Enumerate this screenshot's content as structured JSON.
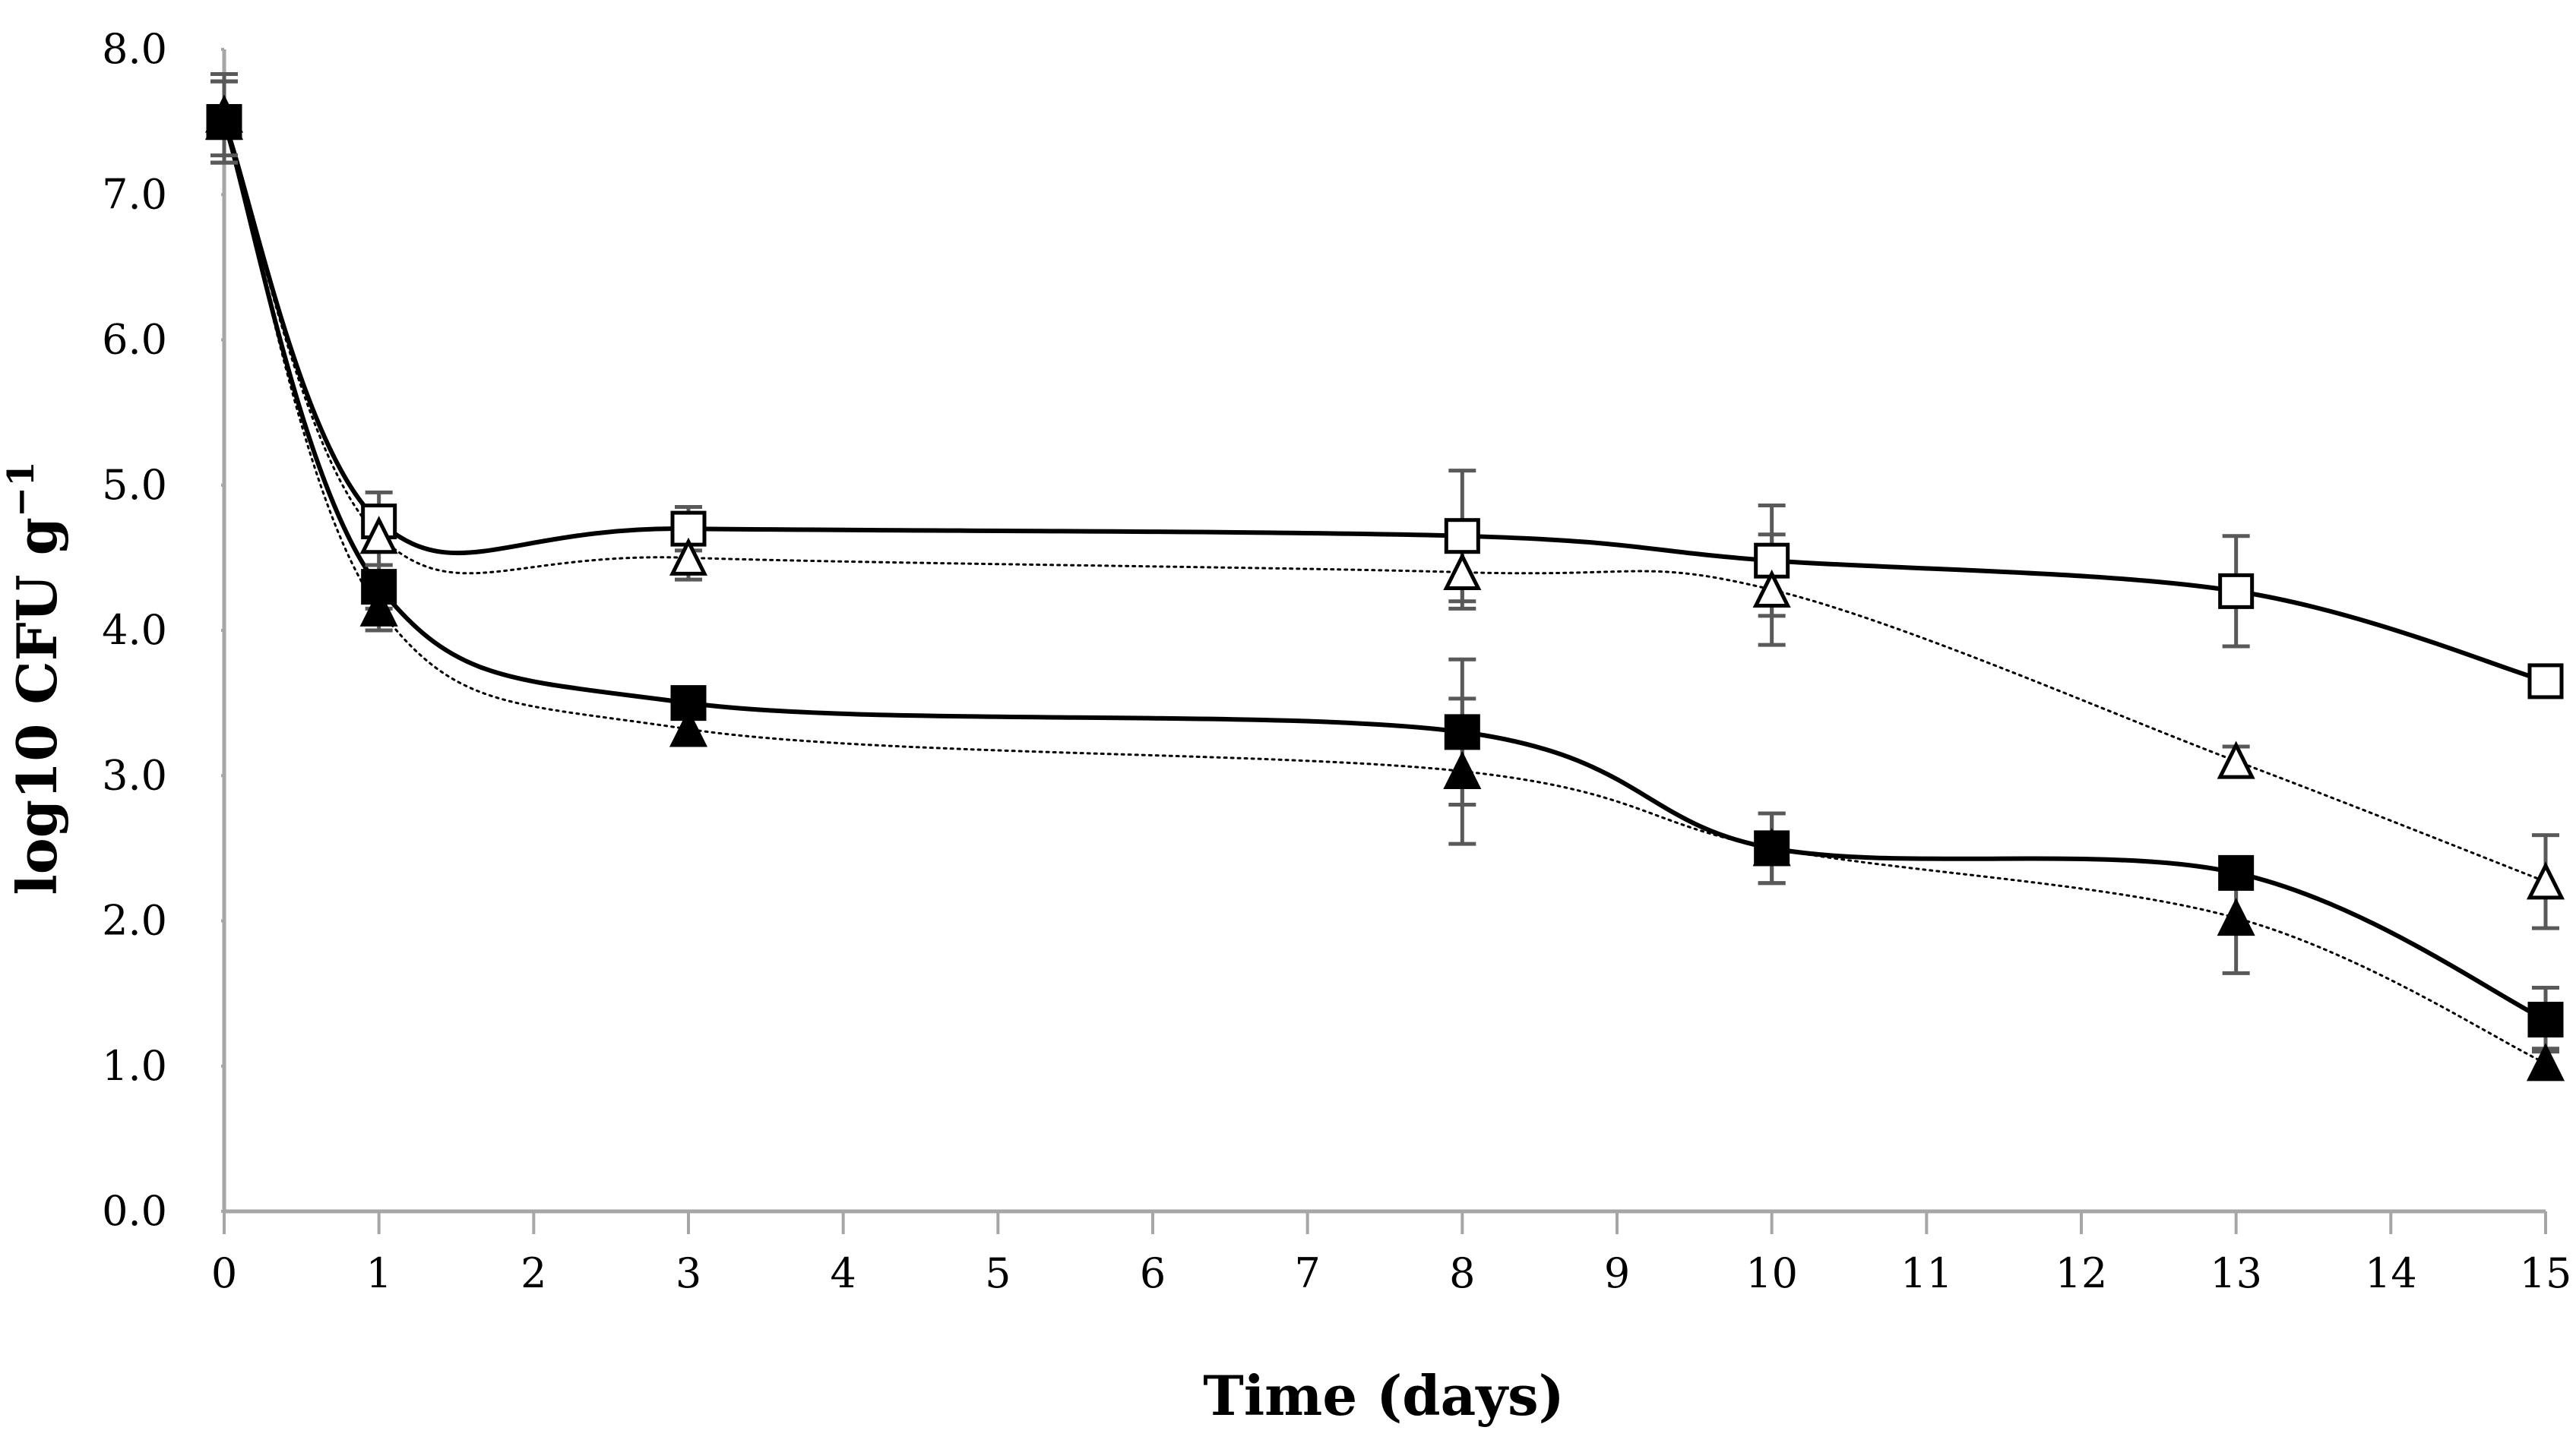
{
  "chart_data": {
    "type": "line",
    "title": "",
    "xlabel": "Time (days)",
    "ylabel_main": "log10 CFU g",
    "ylabel_sup": "−1",
    "xlim": [
      0,
      15
    ],
    "ylim": [
      0,
      8
    ],
    "x_ticks": [
      "0",
      "1",
      "2",
      "3",
      "4",
      "5",
      "6",
      "7",
      "8",
      "9",
      "10",
      "11",
      "12",
      "13",
      "14",
      "15"
    ],
    "y_ticks": [
      "0.0",
      "1.0",
      "2.0",
      "3.0",
      "4.0",
      "5.0",
      "6.0",
      "7.0",
      "8.0"
    ],
    "colors": {
      "axis": "#a6a6a6",
      "errorbar": "#595959",
      "series": "#000000"
    },
    "series": [
      {
        "name": "open-square",
        "marker": "square-open",
        "line": "solid",
        "x": [
          0,
          1,
          3,
          8,
          10,
          13,
          15
        ],
        "y": [
          7.5,
          4.75,
          4.7,
          4.65,
          4.48,
          4.27,
          3.65
        ],
        "err": [
          0.28,
          0.2,
          0.15,
          0.45,
          0.38,
          0.38,
          0
        ]
      },
      {
        "name": "open-triangle",
        "marker": "triangle-open",
        "line": "dotted",
        "x": [
          0,
          1,
          3,
          8,
          10,
          13,
          15
        ],
        "y": [
          7.5,
          4.65,
          4.5,
          4.4,
          4.28,
          3.1,
          2.27
        ],
        "err": [
          0.28,
          0.2,
          0.15,
          0.25,
          0.38,
          0.1,
          0.32
        ]
      },
      {
        "name": "filled-square",
        "marker": "square-filled",
        "line": "solid",
        "x": [
          0,
          1,
          3,
          8,
          10,
          13,
          15
        ],
        "y": [
          7.5,
          4.3,
          3.5,
          3.3,
          2.5,
          2.33,
          1.32
        ],
        "err": [
          0.28,
          0.15,
          0.08,
          0.5,
          0.24,
          0.1,
          0.22
        ]
      },
      {
        "name": "filled-triangle",
        "marker": "triangle-filled",
        "line": "dotted",
        "x": [
          0,
          1,
          3,
          8,
          10,
          13,
          15
        ],
        "y": [
          7.55,
          4.15,
          3.32,
          3.03,
          2.5,
          2.02,
          1.02
        ],
        "err": [
          0.28,
          0.15,
          0.08,
          0.5,
          0.24,
          0.38,
          0.1
        ]
      }
    ]
  }
}
